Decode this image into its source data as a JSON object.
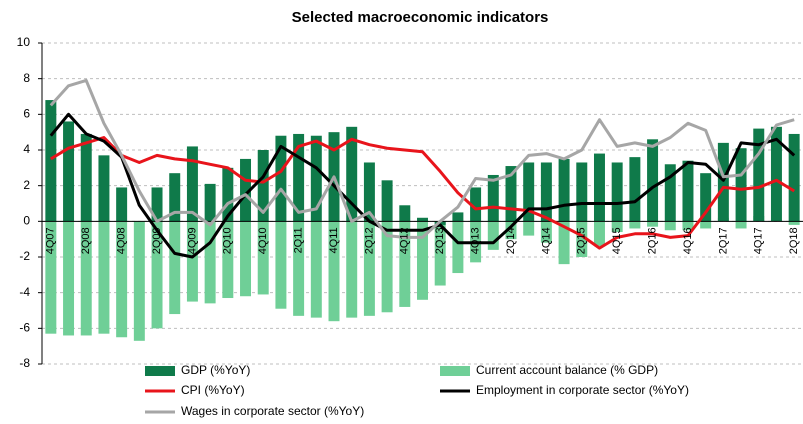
{
  "chart_data": {
    "type": "bar",
    "title": "Selected macroeconomic indicators",
    "categories": [
      "4Q07",
      null,
      "2Q08",
      null,
      "4Q08",
      null,
      "2Q09",
      null,
      "4Q09",
      null,
      "2Q10",
      null,
      "4Q10",
      null,
      "2Q11",
      null,
      "4Q11",
      null,
      "2Q12",
      null,
      "4Q12",
      null,
      "2Q13",
      null,
      "4Q13",
      null,
      "2Q14",
      null,
      "4Q14",
      null,
      "2Q15",
      null,
      "4Q15",
      null,
      "2Q16",
      null,
      "4Q16",
      null,
      "2Q17",
      null,
      "4Q17",
      null,
      "2Q18"
    ],
    "series": [
      {
        "name": "Current account balance (% GDP)",
        "type": "bar",
        "color": "#6fcf97",
        "values": [
          -6.3,
          -6.4,
          -6.4,
          -6.3,
          -6.5,
          -6.7,
          -6.0,
          -5.2,
          -4.5,
          -4.6,
          -4.3,
          -4.2,
          -4.1,
          -4.9,
          -5.3,
          -5.4,
          -5.6,
          -5.4,
          -5.3,
          -5.1,
          -4.8,
          -4.4,
          -3.6,
          -2.9,
          -2.3,
          -1.6,
          -1.0,
          -0.8,
          -1.2,
          -2.4,
          -2.0,
          -1.4,
          -0.6,
          -0.4,
          -0.3,
          -0.5,
          -0.5,
          -0.4,
          0.2,
          -0.4,
          0.3,
          0.1,
          -0.2
        ]
      },
      {
        "name": "GDP (%YoY)",
        "type": "bar",
        "color": "#0f7a4a",
        "values": [
          6.8,
          5.6,
          4.9,
          3.7,
          1.9,
          null,
          1.9,
          2.7,
          4.2,
          2.1,
          3.0,
          3.5,
          4.0,
          4.8,
          4.9,
          4.8,
          5.0,
          5.3,
          3.3,
          2.3,
          0.9,
          0.2,
          -0.2,
          0.5,
          1.9,
          2.6,
          3.1,
          3.3,
          3.3,
          3.5,
          3.3,
          3.8,
          3.3,
          3.6,
          4.6,
          3.2,
          3.4,
          2.7,
          4.4,
          4.1,
          5.2,
          5.3,
          4.9
        ]
      },
      {
        "name": "CPI (%YoY)",
        "type": "line",
        "color": "#e8141b",
        "values": [
          3.5,
          4.1,
          4.4,
          4.7,
          3.7,
          3.3,
          3.7,
          3.5,
          3.4,
          3.2,
          3.0,
          2.3,
          2.2,
          2.8,
          4.2,
          4.5,
          4.0,
          4.6,
          4.3,
          4.1,
          4.0,
          3.9,
          2.8,
          1.6,
          0.7,
          0.8,
          0.7,
          0.6,
          0.2,
          -0.3,
          -0.8,
          -1.5,
          -0.9,
          -0.7,
          -0.7,
          -0.9,
          -0.8,
          0.5,
          1.9,
          1.8,
          1.9,
          2.3,
          1.7
        ]
      },
      {
        "name": "Employment in corporate sector (%YoY)",
        "type": "line",
        "color": "#000000",
        "values": [
          4.8,
          6.0,
          4.9,
          4.5,
          3.6,
          0.9,
          -0.5,
          -1.8,
          -2.0,
          -1.2,
          0.3,
          1.5,
          2.5,
          4.2,
          3.6,
          3.0,
          2.0,
          1.0,
          0.0,
          -0.5,
          -0.5,
          -0.5,
          -0.2,
          -1.2,
          -1.2,
          -1.2,
          -0.3,
          0.7,
          0.7,
          0.9,
          1.0,
          1.0,
          1.0,
          1.1,
          1.9,
          2.5,
          3.3,
          3.2,
          2.3,
          4.4,
          4.3,
          4.6,
          3.7
        ]
      },
      {
        "name": "Wages in corporate sector (%YoY)",
        "type": "line",
        "color": "#a6a6a6",
        "values": [
          6.5,
          7.6,
          7.9,
          5.5,
          3.7,
          1.7,
          0.0,
          0.5,
          0.5,
          -0.2,
          1.0,
          1.5,
          0.5,
          1.8,
          0.5,
          0.7,
          2.5,
          0.0,
          0.5,
          -0.8,
          -0.9,
          -0.9,
          0.0,
          0.8,
          2.4,
          2.3,
          2.6,
          3.7,
          3.8,
          3.5,
          4.0,
          5.7,
          4.2,
          4.4,
          4.2,
          4.7,
          5.5,
          5.1,
          2.5,
          2.6,
          3.8,
          5.4,
          5.7
        ]
      }
    ],
    "legend_order": [
      1,
      0,
      2,
      3,
      4
    ],
    "ylim": [
      -8,
      10
    ],
    "yticks": [
      -8,
      -6,
      -4,
      -2,
      0,
      2,
      4,
      6,
      8,
      10
    ],
    "grid": true
  }
}
